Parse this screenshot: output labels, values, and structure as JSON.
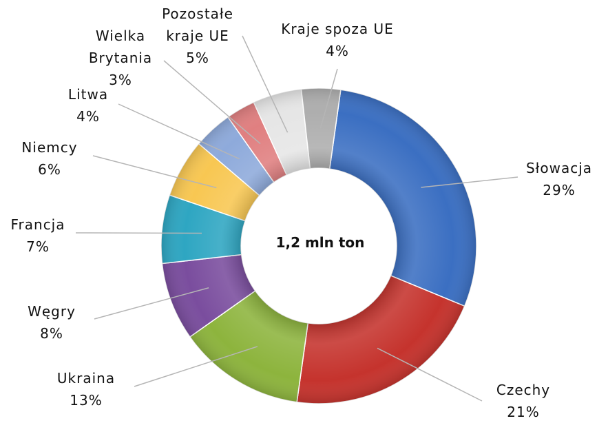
{
  "chart_data": {
    "type": "donut",
    "annotation": "1,2 mln ton",
    "categories": [
      "Słowacja",
      "Czechy",
      "Ukraina",
      "Węgry",
      "Francja",
      "Niemcy",
      "Litwa",
      "Wielka Brytania",
      "Pozostałe kraje UE",
      "Kraje spoza UE"
    ],
    "values": [
      29,
      21,
      13,
      8,
      7,
      6,
      4,
      3,
      5,
      4
    ],
    "value_labels": [
      "29%",
      "21%",
      "13%",
      "8%",
      "7%",
      "6%",
      "4%",
      "3%",
      "5%",
      "4%"
    ],
    "colors": [
      "#3b6fc2",
      "#c5332d",
      "#8db43d",
      "#7a4d9e",
      "#2ea6c2",
      "#f8c752",
      "#8eaadb",
      "#e07f80",
      "#e6e6e6",
      "#aeaeae"
    ]
  }
}
